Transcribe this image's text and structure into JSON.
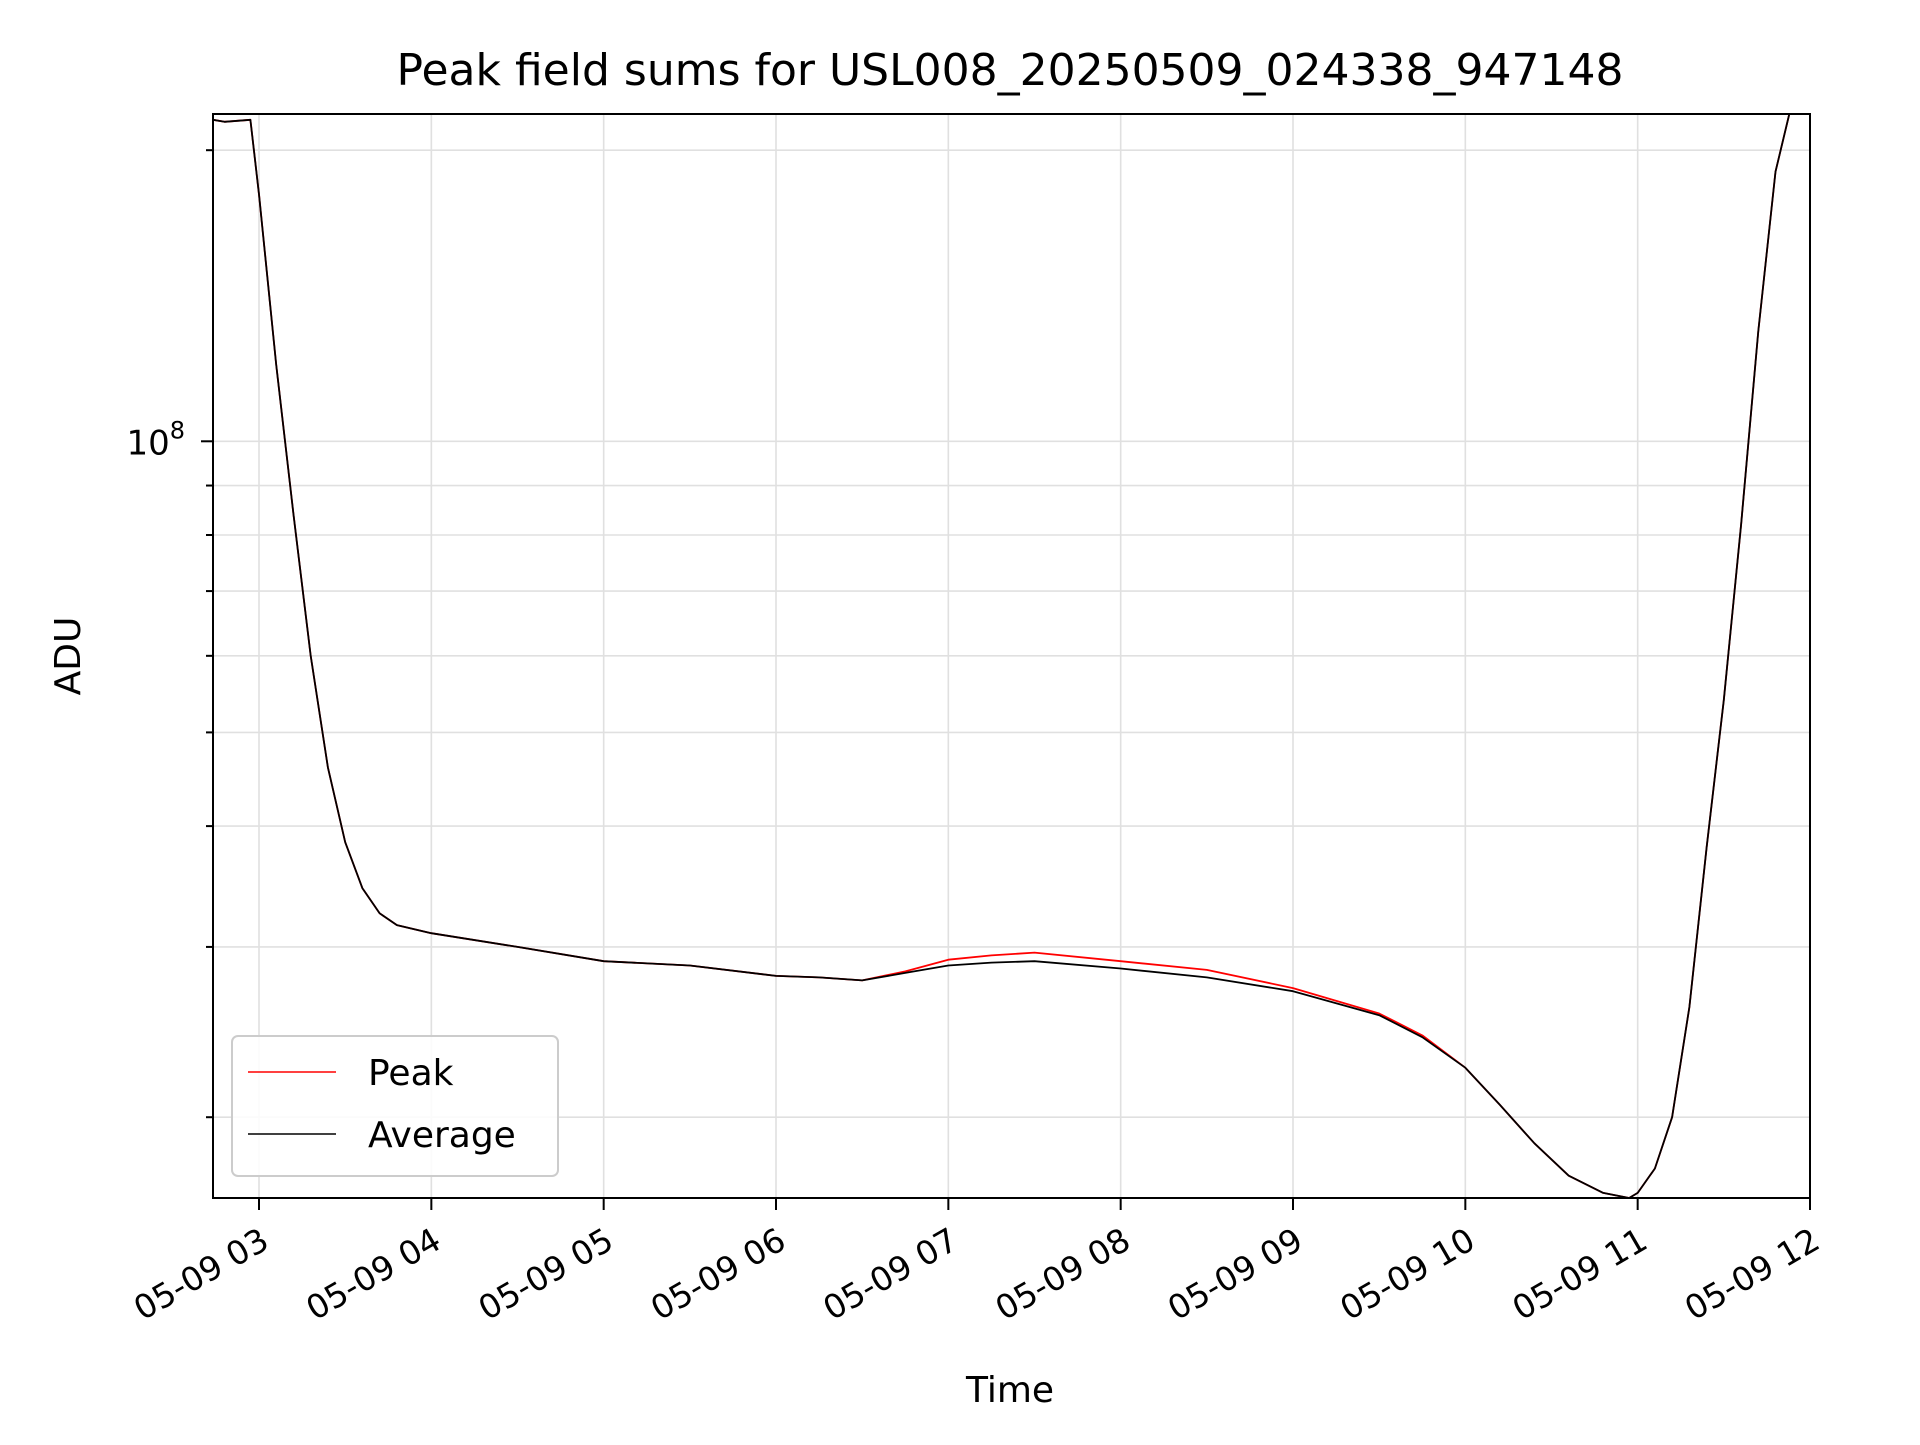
{
  "chart_data": {
    "type": "line",
    "title": "Peak field sums for USL008_20250509_024338_947148",
    "xlabel": "Time",
    "ylabel": "ADU",
    "x_tick_labels": [
      "05-09 03",
      "05-09 04",
      "05-09 05",
      "05-09 06",
      "05-09 07",
      "05-09 08",
      "05-09 09",
      "05-09 10",
      "05-09 11",
      "05-09 12"
    ],
    "x_ticks_hours": [
      3,
      4,
      5,
      6,
      7,
      8,
      9,
      10,
      11,
      12
    ],
    "y_scale": "log",
    "y_tick_label": {
      "base": "10",
      "exp": "8",
      "value": 100000000
    },
    "xlim_hours": [
      2.733,
      12.0
    ],
    "ylim": [
      16500000,
      218000000
    ],
    "grid": true,
    "legend": {
      "placement": "lower-left",
      "entries": [
        "Peak",
        "Average"
      ]
    },
    "series": [
      {
        "name": "Peak",
        "color": "#ff0000",
        "x_hours": [
          2.733,
          2.8,
          2.95,
          3.0,
          3.1,
          3.2,
          3.3,
          3.4,
          3.5,
          3.6,
          3.7,
          3.8,
          4.0,
          4.5,
          5.0,
          5.5,
          6.0,
          6.25,
          6.5,
          6.75,
          7.0,
          7.25,
          7.5,
          8.0,
          8.5,
          9.0,
          9.5,
          9.75,
          10.0,
          10.2,
          10.4,
          10.6,
          10.8,
          10.95,
          11.0,
          11.1,
          11.2,
          11.3,
          11.4,
          11.5,
          11.6,
          11.7,
          11.8,
          11.88
        ],
        "values": [
          215000000,
          214000000,
          215000000,
          180000000,
          120000000,
          84000000,
          60000000,
          46000000,
          38500000,
          34500000,
          32500000,
          31600000,
          31000000,
          30000000,
          29000000,
          28700000,
          28000000,
          27900000,
          27700000,
          28300000,
          29100000,
          29400000,
          29600000,
          29000000,
          28400000,
          27200000,
          25600000,
          24300000,
          22500000,
          20600000,
          18800000,
          17400000,
          16700000,
          16500000,
          16700000,
          17700000,
          20000000,
          26000000,
          38000000,
          54000000,
          82000000,
          130000000,
          190000000,
          218000000
        ]
      },
      {
        "name": "Average",
        "color": "#000000",
        "x_hours": [
          2.733,
          2.8,
          2.95,
          3.0,
          3.1,
          3.2,
          3.3,
          3.4,
          3.5,
          3.6,
          3.7,
          3.8,
          4.0,
          4.5,
          5.0,
          5.5,
          6.0,
          6.25,
          6.5,
          6.75,
          7.0,
          7.25,
          7.5,
          8.0,
          8.5,
          9.0,
          9.5,
          9.75,
          10.0,
          10.2,
          10.4,
          10.6,
          10.8,
          10.95,
          11.0,
          11.1,
          11.2,
          11.3,
          11.4,
          11.5,
          11.6,
          11.7,
          11.8,
          11.88
        ],
        "values": [
          215000000,
          214000000,
          215000000,
          180000000,
          120000000,
          84000000,
          60000000,
          46000000,
          38500000,
          34500000,
          32500000,
          31600000,
          31000000,
          30000000,
          29000000,
          28700000,
          28000000,
          27900000,
          27700000,
          28200000,
          28700000,
          28900000,
          29000000,
          28500000,
          27900000,
          27000000,
          25500000,
          24200000,
          22500000,
          20600000,
          18800000,
          17400000,
          16700000,
          16500000,
          16700000,
          17700000,
          20000000,
          26000000,
          38000000,
          54000000,
          82000000,
          130000000,
          190000000,
          218000000
        ]
      }
    ]
  }
}
